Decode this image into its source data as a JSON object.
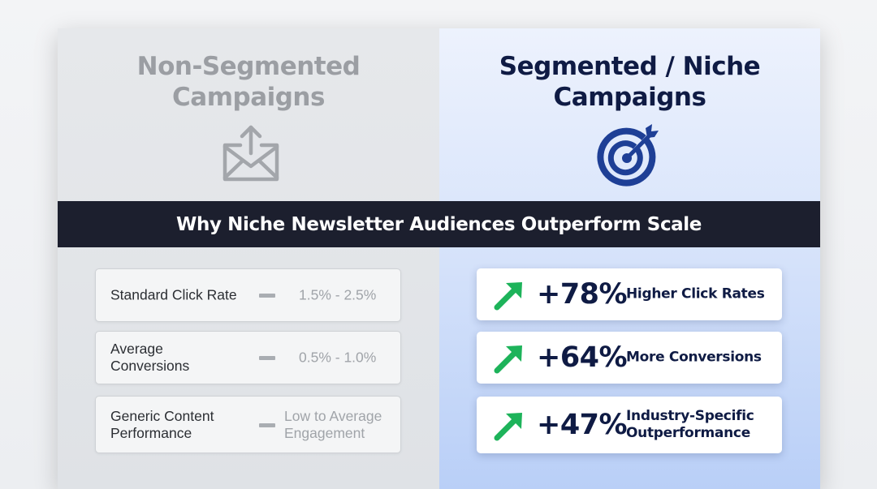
{
  "left_panel": {
    "title_line1": "Non-Segmented",
    "title_line2": "Campaigns",
    "icon": "envelope-send-icon",
    "stats": [
      {
        "label": "Standard Click Rate",
        "value": "1.5% - 2.5%"
      },
      {
        "label": "Average Conversions",
        "value": "0.5% - 1.0%"
      },
      {
        "label": "Generic Content Performance",
        "value": "Low to Average Engagement"
      }
    ]
  },
  "right_panel": {
    "title_line1": "Segmented / Niche",
    "title_line2": "Campaigns",
    "icon": "target-bullseye-icon",
    "stats": [
      {
        "percent": "+78%",
        "label": "Higher Click Rates"
      },
      {
        "percent": "+64%",
        "label": "More Conversions"
      },
      {
        "percent": "+47%",
        "label": "Industry-Specific Outperformance"
      }
    ]
  },
  "banner": {
    "text": "Why Niche Newsletter Audiences Outperform Scale"
  },
  "colors": {
    "navy": "#0f1b44",
    "banner_bg": "#1c1f2e",
    "arrow_green": "#1db35a",
    "muted_gray": "#9b9ea3",
    "target_blue": "#1e3f96"
  }
}
